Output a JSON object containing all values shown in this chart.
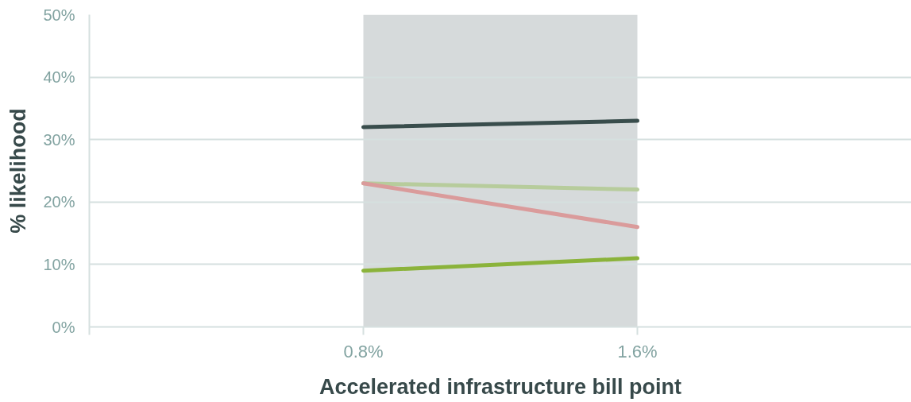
{
  "chart_data": {
    "type": "line",
    "xlabel": "Accelerated infrastructure bill point",
    "ylabel": "% likelihood",
    "x": [
      0.8,
      1.6
    ],
    "series": [
      {
        "color": "#394d4c",
        "values": [
          32,
          33
        ]
      },
      {
        "color": "#b7cc9c",
        "values": [
          23,
          22
        ]
      },
      {
        "color": "#da9b9b",
        "values": [
          23,
          16
        ]
      },
      {
        "color": "#8bb33b",
        "values": [
          9,
          11
        ]
      }
    ],
    "xlim": [
      0,
      2.4
    ],
    "xticks": [
      {
        "value": 0,
        "label": null
      },
      {
        "value": 0.8,
        "label": "0.8%"
      },
      {
        "value": 1.6,
        "label": "1.6%"
      }
    ],
    "ylim": [
      0,
      50
    ],
    "yticks": [
      {
        "value": 0,
        "label": "0%"
      },
      {
        "value": 10,
        "label": "10%"
      },
      {
        "value": 20,
        "label": "20%"
      },
      {
        "value": 30,
        "label": "30%"
      },
      {
        "value": 40,
        "label": "40%"
      },
      {
        "value": 50,
        "label": "50%"
      }
    ],
    "grid": "y",
    "line_style": "solid",
    "bands": [
      {
        "axis": "x",
        "from": 0.8,
        "to": 1.6,
        "color": "#d6dadb"
      }
    ]
  }
}
